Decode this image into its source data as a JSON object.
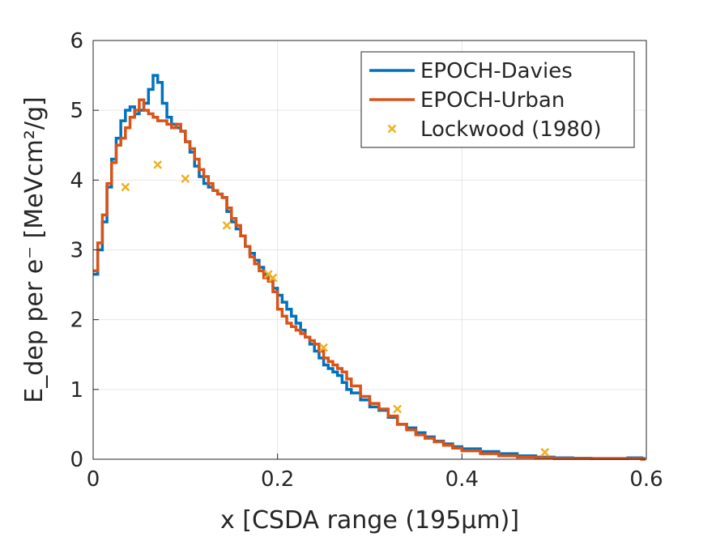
{
  "chart_data": {
    "type": "line",
    "title": "",
    "xlabel": "x [CSDA range (195μm)]",
    "ylabel": "E_dep per e⁻ [MeVcm²/g]",
    "xlim": [
      0,
      0.6
    ],
    "ylim": [
      0,
      6
    ],
    "xticks": [
      0,
      0.2,
      0.4,
      0.6
    ],
    "xtick_labels": [
      "0",
      "0.2",
      "0.4",
      "0.6"
    ],
    "yticks": [
      0,
      1,
      2,
      3,
      4,
      5,
      6
    ],
    "ytick_labels": [
      "0",
      "1",
      "2",
      "3",
      "4",
      "5",
      "6"
    ],
    "grid": true,
    "legend_position": "top-right",
    "series": [
      {
        "name": "EPOCH-Davies",
        "color": "#0072BD",
        "style": "step-line",
        "x": [
          0,
          0.005,
          0.01,
          0.015,
          0.02,
          0.025,
          0.03,
          0.035,
          0.04,
          0.045,
          0.05,
          0.055,
          0.06,
          0.065,
          0.07,
          0.075,
          0.08,
          0.085,
          0.09,
          0.095,
          0.1,
          0.105,
          0.11,
          0.115,
          0.12,
          0.125,
          0.13,
          0.135,
          0.14,
          0.145,
          0.15,
          0.155,
          0.16,
          0.165,
          0.17,
          0.175,
          0.18,
          0.185,
          0.19,
          0.195,
          0.2,
          0.205,
          0.21,
          0.215,
          0.22,
          0.225,
          0.23,
          0.235,
          0.24,
          0.245,
          0.25,
          0.255,
          0.26,
          0.265,
          0.27,
          0.275,
          0.28,
          0.29,
          0.3,
          0.31,
          0.32,
          0.33,
          0.34,
          0.35,
          0.36,
          0.37,
          0.38,
          0.39,
          0.4,
          0.42,
          0.44,
          0.46,
          0.48,
          0.5,
          0.52,
          0.54,
          0.56,
          0.58,
          0.595
        ],
        "y": [
          2.65,
          3.0,
          3.4,
          3.9,
          4.3,
          4.6,
          4.85,
          5.0,
          5.05,
          4.95,
          5.0,
          5.1,
          5.3,
          5.5,
          5.4,
          5.1,
          4.9,
          4.8,
          4.75,
          4.7,
          4.55,
          4.4,
          4.2,
          4.05,
          3.95,
          3.9,
          3.85,
          3.8,
          3.75,
          3.55,
          3.4,
          3.3,
          3.2,
          3.05,
          2.95,
          2.85,
          2.75,
          2.65,
          2.55,
          2.45,
          2.35,
          2.25,
          2.15,
          2.05,
          1.95,
          1.85,
          1.75,
          1.65,
          1.55,
          1.45,
          1.35,
          1.3,
          1.25,
          1.2,
          1.1,
          1.0,
          0.95,
          0.85,
          0.75,
          0.7,
          0.6,
          0.5,
          0.45,
          0.38,
          0.32,
          0.26,
          0.22,
          0.18,
          0.15,
          0.11,
          0.08,
          0.05,
          0.03,
          0.02,
          0.015,
          0.01,
          0.01,
          0.02,
          0.01
        ]
      },
      {
        "name": "EPOCH-Urban",
        "color": "#D95319",
        "style": "step-line",
        "x": [
          0,
          0.005,
          0.01,
          0.015,
          0.02,
          0.025,
          0.03,
          0.035,
          0.04,
          0.045,
          0.05,
          0.055,
          0.06,
          0.065,
          0.07,
          0.075,
          0.08,
          0.085,
          0.09,
          0.095,
          0.1,
          0.105,
          0.11,
          0.115,
          0.12,
          0.125,
          0.13,
          0.135,
          0.14,
          0.145,
          0.15,
          0.155,
          0.16,
          0.165,
          0.17,
          0.175,
          0.18,
          0.185,
          0.19,
          0.195,
          0.2,
          0.205,
          0.21,
          0.215,
          0.22,
          0.225,
          0.23,
          0.235,
          0.24,
          0.245,
          0.25,
          0.255,
          0.26,
          0.265,
          0.27,
          0.275,
          0.28,
          0.29,
          0.3,
          0.31,
          0.32,
          0.33,
          0.34,
          0.35,
          0.36,
          0.37,
          0.38,
          0.39,
          0.4,
          0.42,
          0.44,
          0.46,
          0.48,
          0.5,
          0.52,
          0.54,
          0.56,
          0.58,
          0.595
        ],
        "y": [
          2.7,
          3.1,
          3.5,
          3.95,
          4.25,
          4.5,
          4.6,
          4.75,
          4.9,
          5.0,
          5.15,
          5.0,
          4.95,
          4.9,
          4.85,
          4.85,
          4.8,
          4.75,
          4.8,
          4.7,
          4.55,
          4.45,
          4.3,
          4.15,
          4.05,
          3.95,
          3.85,
          3.8,
          3.75,
          3.6,
          3.45,
          3.35,
          3.2,
          3.05,
          2.9,
          2.8,
          2.7,
          2.6,
          2.55,
          2.4,
          2.15,
          2.05,
          1.95,
          1.9,
          1.85,
          1.8,
          1.75,
          1.7,
          1.65,
          1.55,
          1.45,
          1.4,
          1.35,
          1.3,
          1.25,
          1.15,
          1.05,
          0.9,
          0.8,
          0.72,
          0.62,
          0.5,
          0.42,
          0.35,
          0.3,
          0.25,
          0.2,
          0.16,
          0.12,
          0.08,
          0.05,
          0.03,
          0.02,
          0.01,
          0.01,
          0.01,
          0.01,
          0.01,
          0.0
        ]
      },
      {
        "name": "Lockwood (1980)",
        "color": "#EDB120",
        "style": "marker-x",
        "x": [
          0.035,
          0.07,
          0.1,
          0.145,
          0.19,
          0.195,
          0.25,
          0.33,
          0.49
        ],
        "y": [
          3.9,
          4.22,
          4.02,
          3.35,
          2.65,
          2.6,
          1.6,
          0.72,
          0.1
        ]
      }
    ]
  }
}
